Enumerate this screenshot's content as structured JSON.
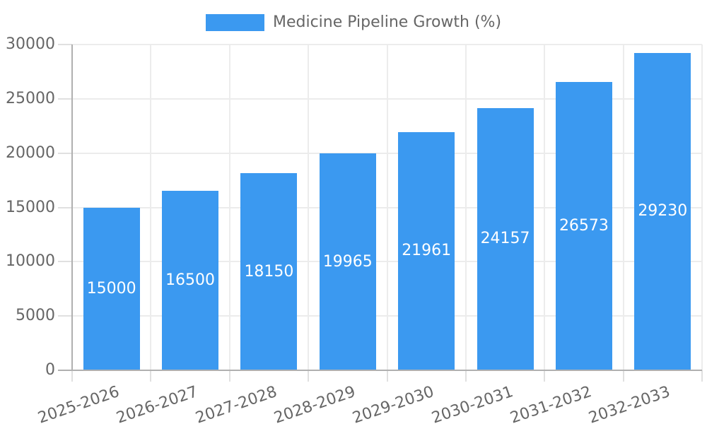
{
  "chart_data": {
    "type": "bar",
    "title": "",
    "legend_label": "Medicine Pipeline Growth (%)",
    "legend_position": "top",
    "categories": [
      "2025-2026",
      "2026-2027",
      "2027-2028",
      "2028-2029",
      "2029-2030",
      "2030-2031",
      "2031-2032",
      "2032-2033"
    ],
    "values": [
      15000,
      16500,
      18150,
      19965,
      21961,
      24157,
      26573,
      29230
    ],
    "value_labels": [
      "15000",
      "16500",
      "18150",
      "19965",
      "21961",
      "24157",
      "26573",
      "29230"
    ],
    "xlabel": "",
    "ylabel": "",
    "ylim": [
      0,
      30000
    ],
    "yticks": [
      0,
      5000,
      10000,
      15000,
      20000,
      25000,
      30000
    ],
    "grid": true,
    "colors": {
      "bar": "#3b99f0",
      "value_label": "#ffffff",
      "tick_text": "#666666",
      "grid_line": "#ececec",
      "tick_mark": "#e0e0e0",
      "axis_line": "#b0b0b0",
      "background": "#ffffff"
    }
  }
}
